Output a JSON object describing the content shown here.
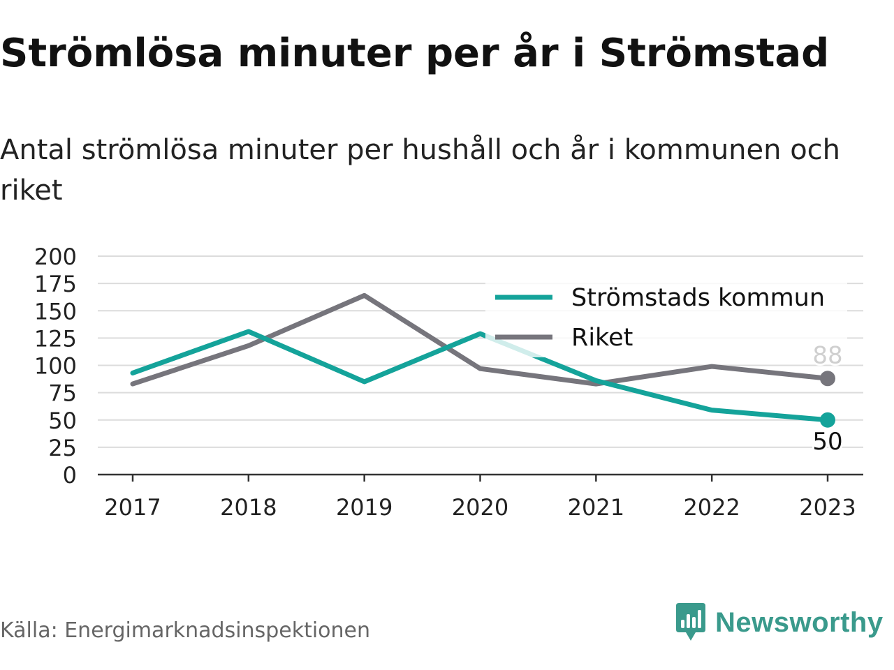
{
  "title": "Strömlösa minuter per år i Strömstad",
  "subtitle": "Antal strömlösa minuter per hushåll och år i kommunen och riket",
  "source": "Källa: Energimarknadsinspektionen",
  "brand": {
    "name": "Newsworthy",
    "icon": "newsworthy-logo-icon",
    "color": "#3a9a8c"
  },
  "chart_data": {
    "type": "line",
    "x": [
      "2017",
      "2018",
      "2019",
      "2020",
      "2021",
      "2022",
      "2023"
    ],
    "ylim": [
      0,
      200
    ],
    "yticks": [
      "0",
      "25",
      "50",
      "75",
      "100",
      "125",
      "150",
      "175",
      "200"
    ],
    "grid": true,
    "legend": "top-right",
    "series": [
      {
        "name": "Strömstads kommun",
        "color": "#14a39a",
        "values": [
          93,
          131,
          85,
          129,
          86,
          59,
          50
        ],
        "end_label": "50"
      },
      {
        "name": "Riket",
        "color": "#76757c",
        "values": [
          83,
          118,
          164,
          97,
          83,
          99,
          88
        ],
        "end_label": "88"
      }
    ]
  }
}
